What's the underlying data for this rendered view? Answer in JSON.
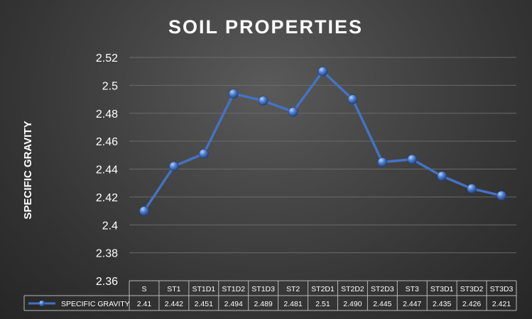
{
  "chart_data": {
    "type": "line",
    "title": "SOIL PROPERTIES",
    "ylabel": "SPECIFIC GRAVITY",
    "xlabel": "",
    "ylim": [
      2.36,
      2.52
    ],
    "yticks": [
      "2.36",
      "2.38",
      "2.4",
      "2.42",
      "2.44",
      "2.46",
      "2.48",
      "2.5",
      "2.52"
    ],
    "ytick_values": [
      2.36,
      2.38,
      2.4,
      2.42,
      2.44,
      2.46,
      2.48,
      2.5,
      2.52
    ],
    "categories": [
      "S",
      "ST1",
      "ST1D1",
      "ST1D2",
      "ST1D3",
      "ST2",
      "ST2D1",
      "ST2D2",
      "ST2D3",
      "ST3",
      "ST3D1",
      "ST3D2",
      "ST3D3"
    ],
    "series": [
      {
        "name": "SPECIFIC GRAVITY",
        "values": [
          2.41,
          2.442,
          2.451,
          2.494,
          2.489,
          2.481,
          2.51,
          2.49,
          2.445,
          2.447,
          2.435,
          2.426,
          2.421
        ],
        "labels": [
          "2.41",
          "2.442",
          "2.451",
          "2.494",
          "2.489",
          "2.481",
          "2.51",
          "2.490",
          "2.445",
          "2.447",
          "2.435",
          "2.426",
          "2.421"
        ],
        "color": "#4472c4"
      }
    ],
    "grid": true,
    "data_table": true,
    "background": "#3c3c3c"
  }
}
